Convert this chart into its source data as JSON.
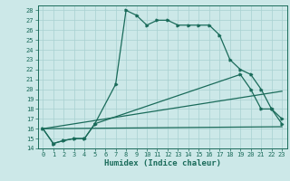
{
  "xlabel": "Humidex (Indice chaleur)",
  "bg_color": "#cce8e8",
  "line_color": "#1a6b5a",
  "grid_color": "#a8d0d0",
  "xlim": [
    -0.5,
    23.5
  ],
  "ylim": [
    14,
    28.5
  ],
  "xticks": [
    0,
    1,
    2,
    3,
    4,
    5,
    6,
    7,
    8,
    9,
    10,
    11,
    12,
    13,
    14,
    15,
    16,
    17,
    18,
    19,
    20,
    21,
    22,
    23
  ],
  "yticks": [
    14,
    15,
    16,
    17,
    18,
    19,
    20,
    21,
    22,
    23,
    24,
    25,
    26,
    27,
    28
  ],
  "line1_x": [
    0,
    1,
    2,
    3,
    4,
    5,
    7,
    8,
    9,
    10,
    11,
    12,
    13,
    14,
    15,
    16,
    17,
    18,
    19,
    20,
    21,
    22,
    23
  ],
  "line1_y": [
    16,
    14.5,
    14.8,
    15,
    15,
    16.5,
    20.5,
    28,
    27.5,
    26.5,
    27,
    27,
    26.5,
    26.5,
    26.5,
    26.5,
    25.5,
    23,
    22,
    21.5,
    20,
    18,
    17
  ],
  "line2_x": [
    0,
    1,
    2,
    3,
    4,
    5,
    19,
    20,
    21,
    22,
    23
  ],
  "line2_y": [
    16,
    14.5,
    14.8,
    15,
    15,
    16.5,
    21.5,
    20,
    18,
    18,
    16.5
  ],
  "line3_x": [
    0,
    23
  ],
  "line3_y": [
    16,
    16.2
  ],
  "line4_x": [
    0,
    23
  ],
  "line4_y": [
    16,
    19.8
  ],
  "xlabel_fontsize": 6.5,
  "tick_fontsize": 5
}
